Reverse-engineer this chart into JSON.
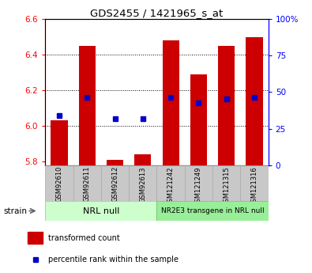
{
  "title": "GDS2455 / 1421965_s_at",
  "samples": [
    "GSM92610",
    "GSM92611",
    "GSM92612",
    "GSM92613",
    "GSM121242",
    "GSM121249",
    "GSM121315",
    "GSM121316"
  ],
  "red_values": [
    6.03,
    6.45,
    5.81,
    5.84,
    6.48,
    6.29,
    6.45,
    6.5
  ],
  "blue_values": [
    6.06,
    6.16,
    6.04,
    6.04,
    6.16,
    6.13,
    6.15,
    6.16
  ],
  "ylim_left": [
    5.78,
    6.6
  ],
  "ylim_right": [
    0,
    100
  ],
  "yticks_left": [
    5.8,
    6.0,
    6.2,
    6.4,
    6.6
  ],
  "yticks_right": [
    0,
    25,
    50,
    75,
    100
  ],
  "group1_label": "NRL null",
  "group2_label": "NR2E3 transgene in NRL null",
  "bar_color": "#cc0000",
  "dot_color": "#0000cc",
  "bar_bottom": 5.78,
  "bar_width": 0.6,
  "group_bg1": "#ccffcc",
  "group_bg2": "#99ee99",
  "xtick_bg": "#c8c8c8",
  "legend_items": [
    "transformed count",
    "percentile rank within the sample"
  ]
}
